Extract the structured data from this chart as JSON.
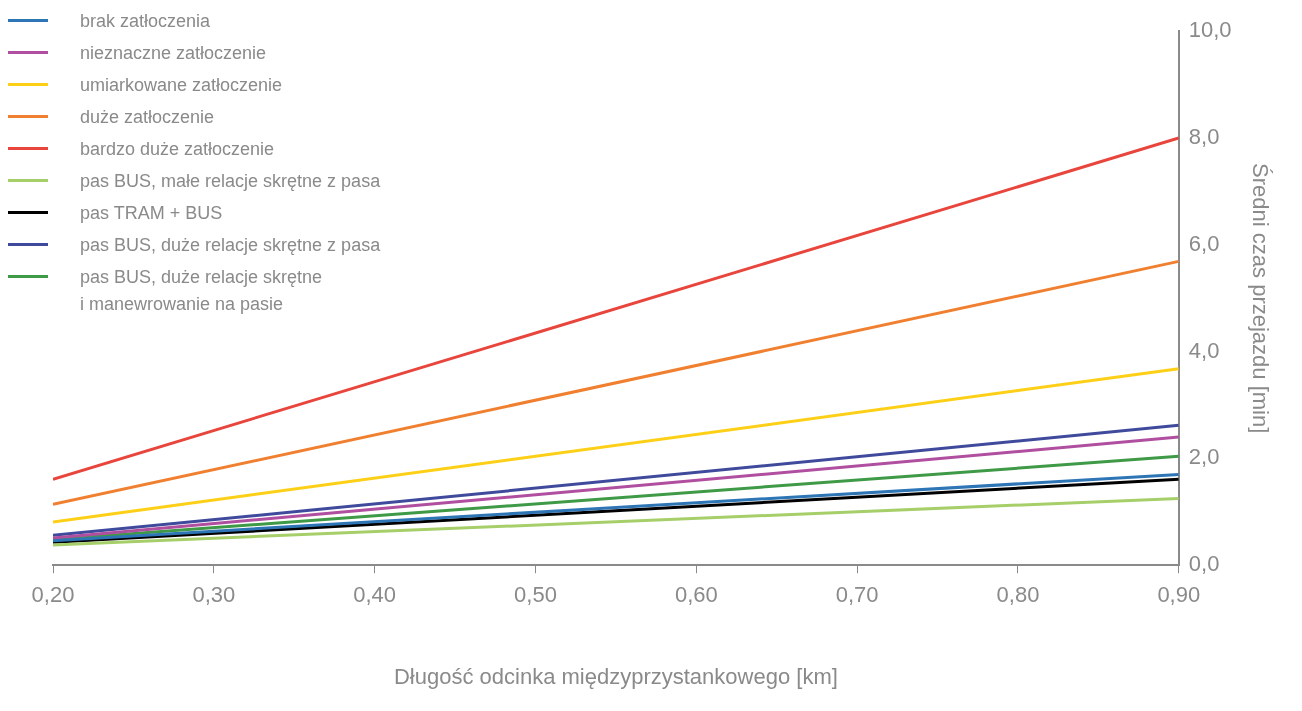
{
  "chart_data": {
    "type": "line",
    "xlabel": "Długość odcinka międzyprzystankowego [km]",
    "ylabel": "Średni czas przejazdu [min]",
    "x": [
      0.2,
      0.9
    ],
    "series": [
      {
        "name": "brak zatłoczenia",
        "color": "#2e75b6",
        "values": [
          0.46,
          1.7
        ]
      },
      {
        "name": "nieznaczne zatłoczenie",
        "color": "#b04fa0",
        "values": [
          0.51,
          2.4
        ]
      },
      {
        "name": "umiarkowane zatłoczenie",
        "color": "#fdd017",
        "values": [
          0.81,
          3.68
        ]
      },
      {
        "name": "duże zatłoczenie",
        "color": "#f08030",
        "values": [
          1.14,
          5.69
        ]
      },
      {
        "name": "bardzo duże zatłoczenie",
        "color": "#e8453c",
        "values": [
          1.61,
          8.0
        ]
      },
      {
        "name": "pas BUS, małe relacje skrętne z pasa",
        "color": "#a6cf6a",
        "values": [
          0.38,
          1.25
        ]
      },
      {
        "name": "pas TRAM + BUS",
        "color": "#000000",
        "values": [
          0.43,
          1.61
        ]
      },
      {
        "name": "pas BUS, duże relacje skrętne z pasa",
        "color": "#3f4a9c",
        "values": [
          0.56,
          2.62
        ]
      },
      {
        "name": "pas BUS, duże relacje skrętne\ni manewrowanie na pasie",
        "color": "#3e9a46",
        "values": [
          0.48,
          2.04
        ]
      }
    ],
    "xlim": [
      0.2,
      0.9
    ],
    "xticks": [
      {
        "value": 0.2,
        "label": "0,20"
      },
      {
        "value": 0.3,
        "label": "0,30"
      },
      {
        "value": 0.4,
        "label": "0,40"
      },
      {
        "value": 0.5,
        "label": "0,50"
      },
      {
        "value": 0.6,
        "label": "0,60"
      },
      {
        "value": 0.7,
        "label": "0,70"
      },
      {
        "value": 0.8,
        "label": "0,80"
      },
      {
        "value": 0.9,
        "label": "0,90"
      }
    ],
    "ylim": [
      0,
      10
    ],
    "yticks": [
      {
        "value": 0,
        "label": "0,0"
      },
      {
        "value": 2,
        "label": "2,0"
      },
      {
        "value": 4,
        "label": "4,0"
      },
      {
        "value": 6,
        "label": "6,0"
      },
      {
        "value": 8,
        "label": "8,0"
      },
      {
        "value": 10,
        "label": "10,0"
      }
    ],
    "grid": false,
    "legend": "top left",
    "marker": "none",
    "line_style": "solid"
  }
}
